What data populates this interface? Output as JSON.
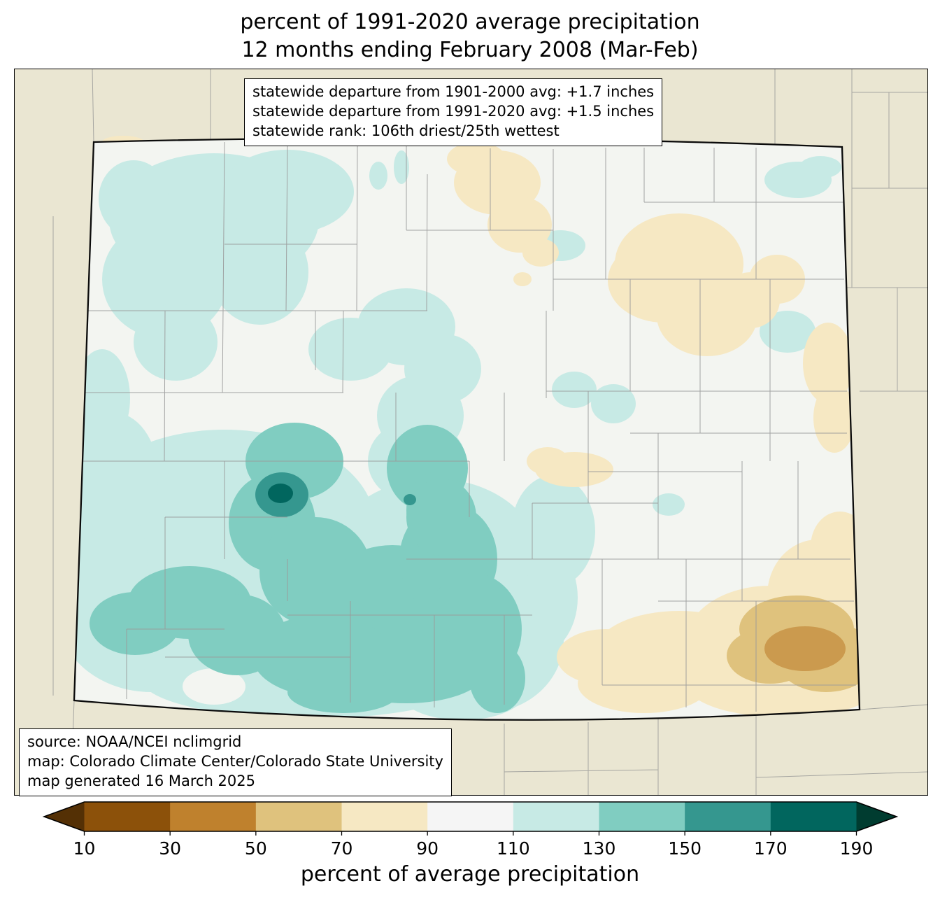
{
  "title": {
    "line1": "percent of 1991-2020 average precipitation",
    "line2": "12 months ending February 2008 (Mar-Feb)"
  },
  "stats_box": {
    "lines": [
      "statewide departure from 1901-2000 avg: +1.7 inches",
      "statewide departure from 1991-2020 avg: +1.5 inches",
      "statewide rank: 106th driest/25th wettest"
    ]
  },
  "source_box": {
    "lines": [
      "source: NOAA/NCEI nclimgrid",
      "map: Colorado Climate Center/Colorado State University",
      "map generated 16 March 2025"
    ]
  },
  "colorbar": {
    "label": "percent of average precipitation",
    "ticks": [
      10,
      30,
      50,
      70,
      90,
      110,
      130,
      150,
      170,
      190
    ],
    "segment_colors": [
      "#8c510a",
      "#bf812d",
      "#dfc27d",
      "#f6e8c3",
      "#f5f5f5",
      "#c7eae5",
      "#80cdc1",
      "#35978f",
      "#01665e"
    ],
    "under_color": "#543005",
    "over_color": "#003c30"
  },
  "map": {
    "colors": {
      "outside": "#eae6d2",
      "state_fill": "#f3f5f1",
      "teal_light": "#c7eae5",
      "teal_mid": "#80cdc1",
      "teal_dark": "#35978f",
      "teal_darkest": "#01665e",
      "tan_light": "#f6e8c3",
      "tan_mid": "#dfc27d",
      "tan_dark": "#cb9a4e",
      "county_line": "#9a9a9a",
      "neighbor_line": "#9a9a99",
      "state_border": "#0b0b0b"
    }
  }
}
